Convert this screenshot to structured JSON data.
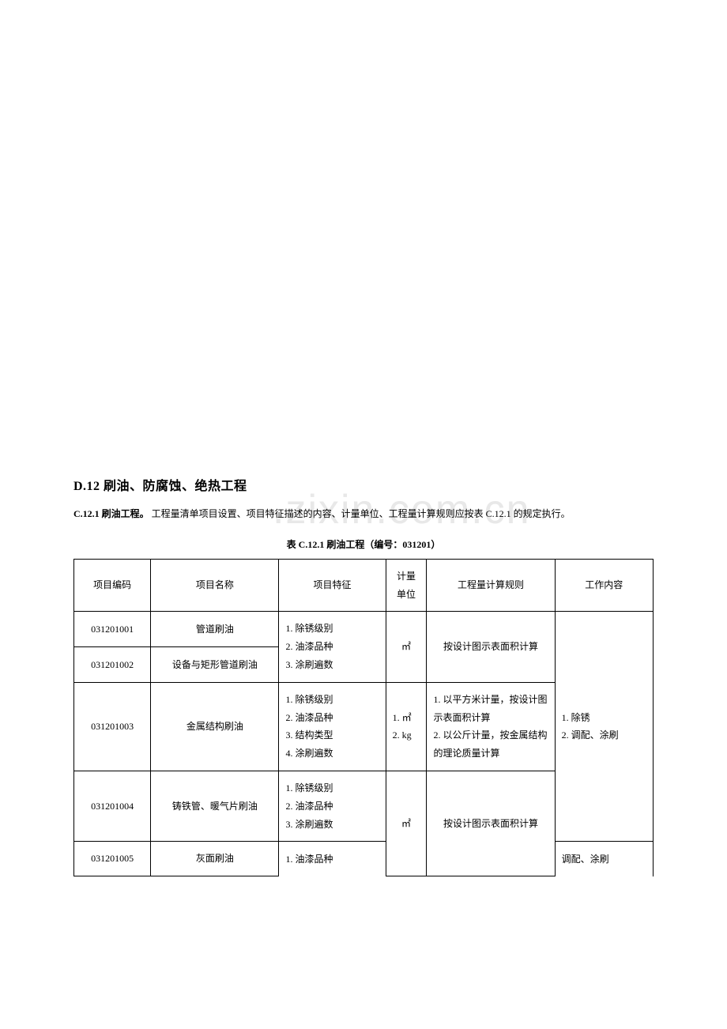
{
  "watermark": ".zixin.com.cn",
  "section_title": "D.12 刷油、防腐蚀、绝热工程",
  "intro": {
    "label": "C.12.1 刷油工程。",
    "text": " 工程量清单项目设置、项目特征描述的内容、计量单位、工程量计算规则应按表 C.12.1 的规定执行。"
  },
  "table_caption": "表 C.12.1  刷油工程（编号：031201）",
  "headers": {
    "code": "项目编码",
    "name": "项目名称",
    "feature": "项目特征",
    "unit": "计量\n单位",
    "rule": "工程量计算规则",
    "work": "工作内容"
  },
  "rows": {
    "r1": {
      "code": "031201001",
      "name": "管道刷油",
      "feature_group1": "1. 除锈级别\n2. 油漆品种\n3. 涂刷遍数",
      "unit": "㎡",
      "rule": "按设计图示表面积计算",
      "work_group1": "1. 除锈\n2. 调配、涂刷"
    },
    "r2": {
      "code": "031201002",
      "name": "设备与矩形管道刷油"
    },
    "r3": {
      "code": "031201003",
      "name": "金属结构刷油",
      "feature": "1. 除锈级别\n2. 油漆品种\n3. 结构类型\n4. 涂刷遍数",
      "unit": "1. ㎡\n2. kg",
      "rule": "1. 以平方米计量，按设计图示表面积计算\n2. 以公斤计量，按金属结构的理论质量计算"
    },
    "r4": {
      "code": "031201004",
      "name": "铸铁管、暖气片刷油",
      "feature": "1. 除锈级别\n2. 油漆品种\n3. 涂刷遍数",
      "unit": "㎡",
      "rule": "按设计图示表面积计算"
    },
    "r5": {
      "code": "031201005",
      "name": "灰面刷油",
      "feature": "1. 油漆品种",
      "work": "调配、涂刷"
    }
  }
}
